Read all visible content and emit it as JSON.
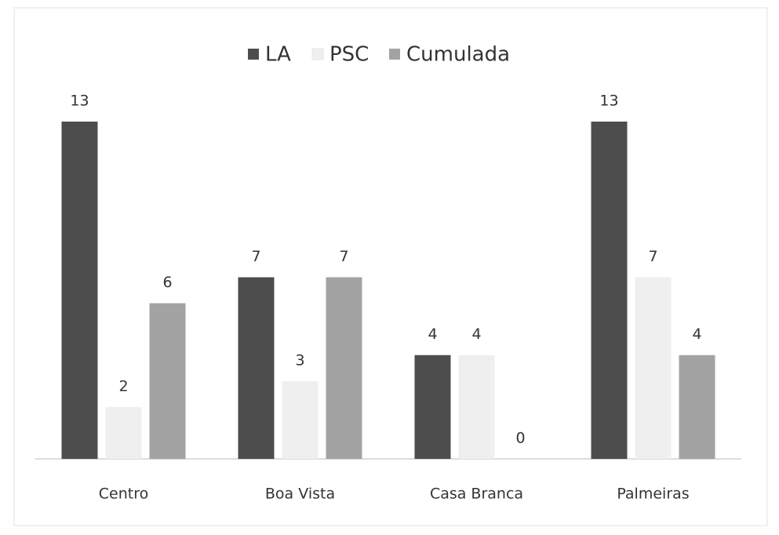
{
  "chart_data": {
    "type": "bar",
    "categories": [
      "Centro",
      "Boa Vista",
      "Casa Branca",
      "Palmeiras"
    ],
    "series": [
      {
        "name": "LA",
        "color": "#4d4d4d",
        "values": [
          13,
          7,
          4,
          13
        ]
      },
      {
        "name": "PSC",
        "color": "#efefef",
        "values": [
          2,
          3,
          4,
          7
        ]
      },
      {
        "name": "Cumulada",
        "color": "#a3a3a3",
        "values": [
          6,
          7,
          0,
          4
        ]
      }
    ],
    "legend": "top"
  }
}
